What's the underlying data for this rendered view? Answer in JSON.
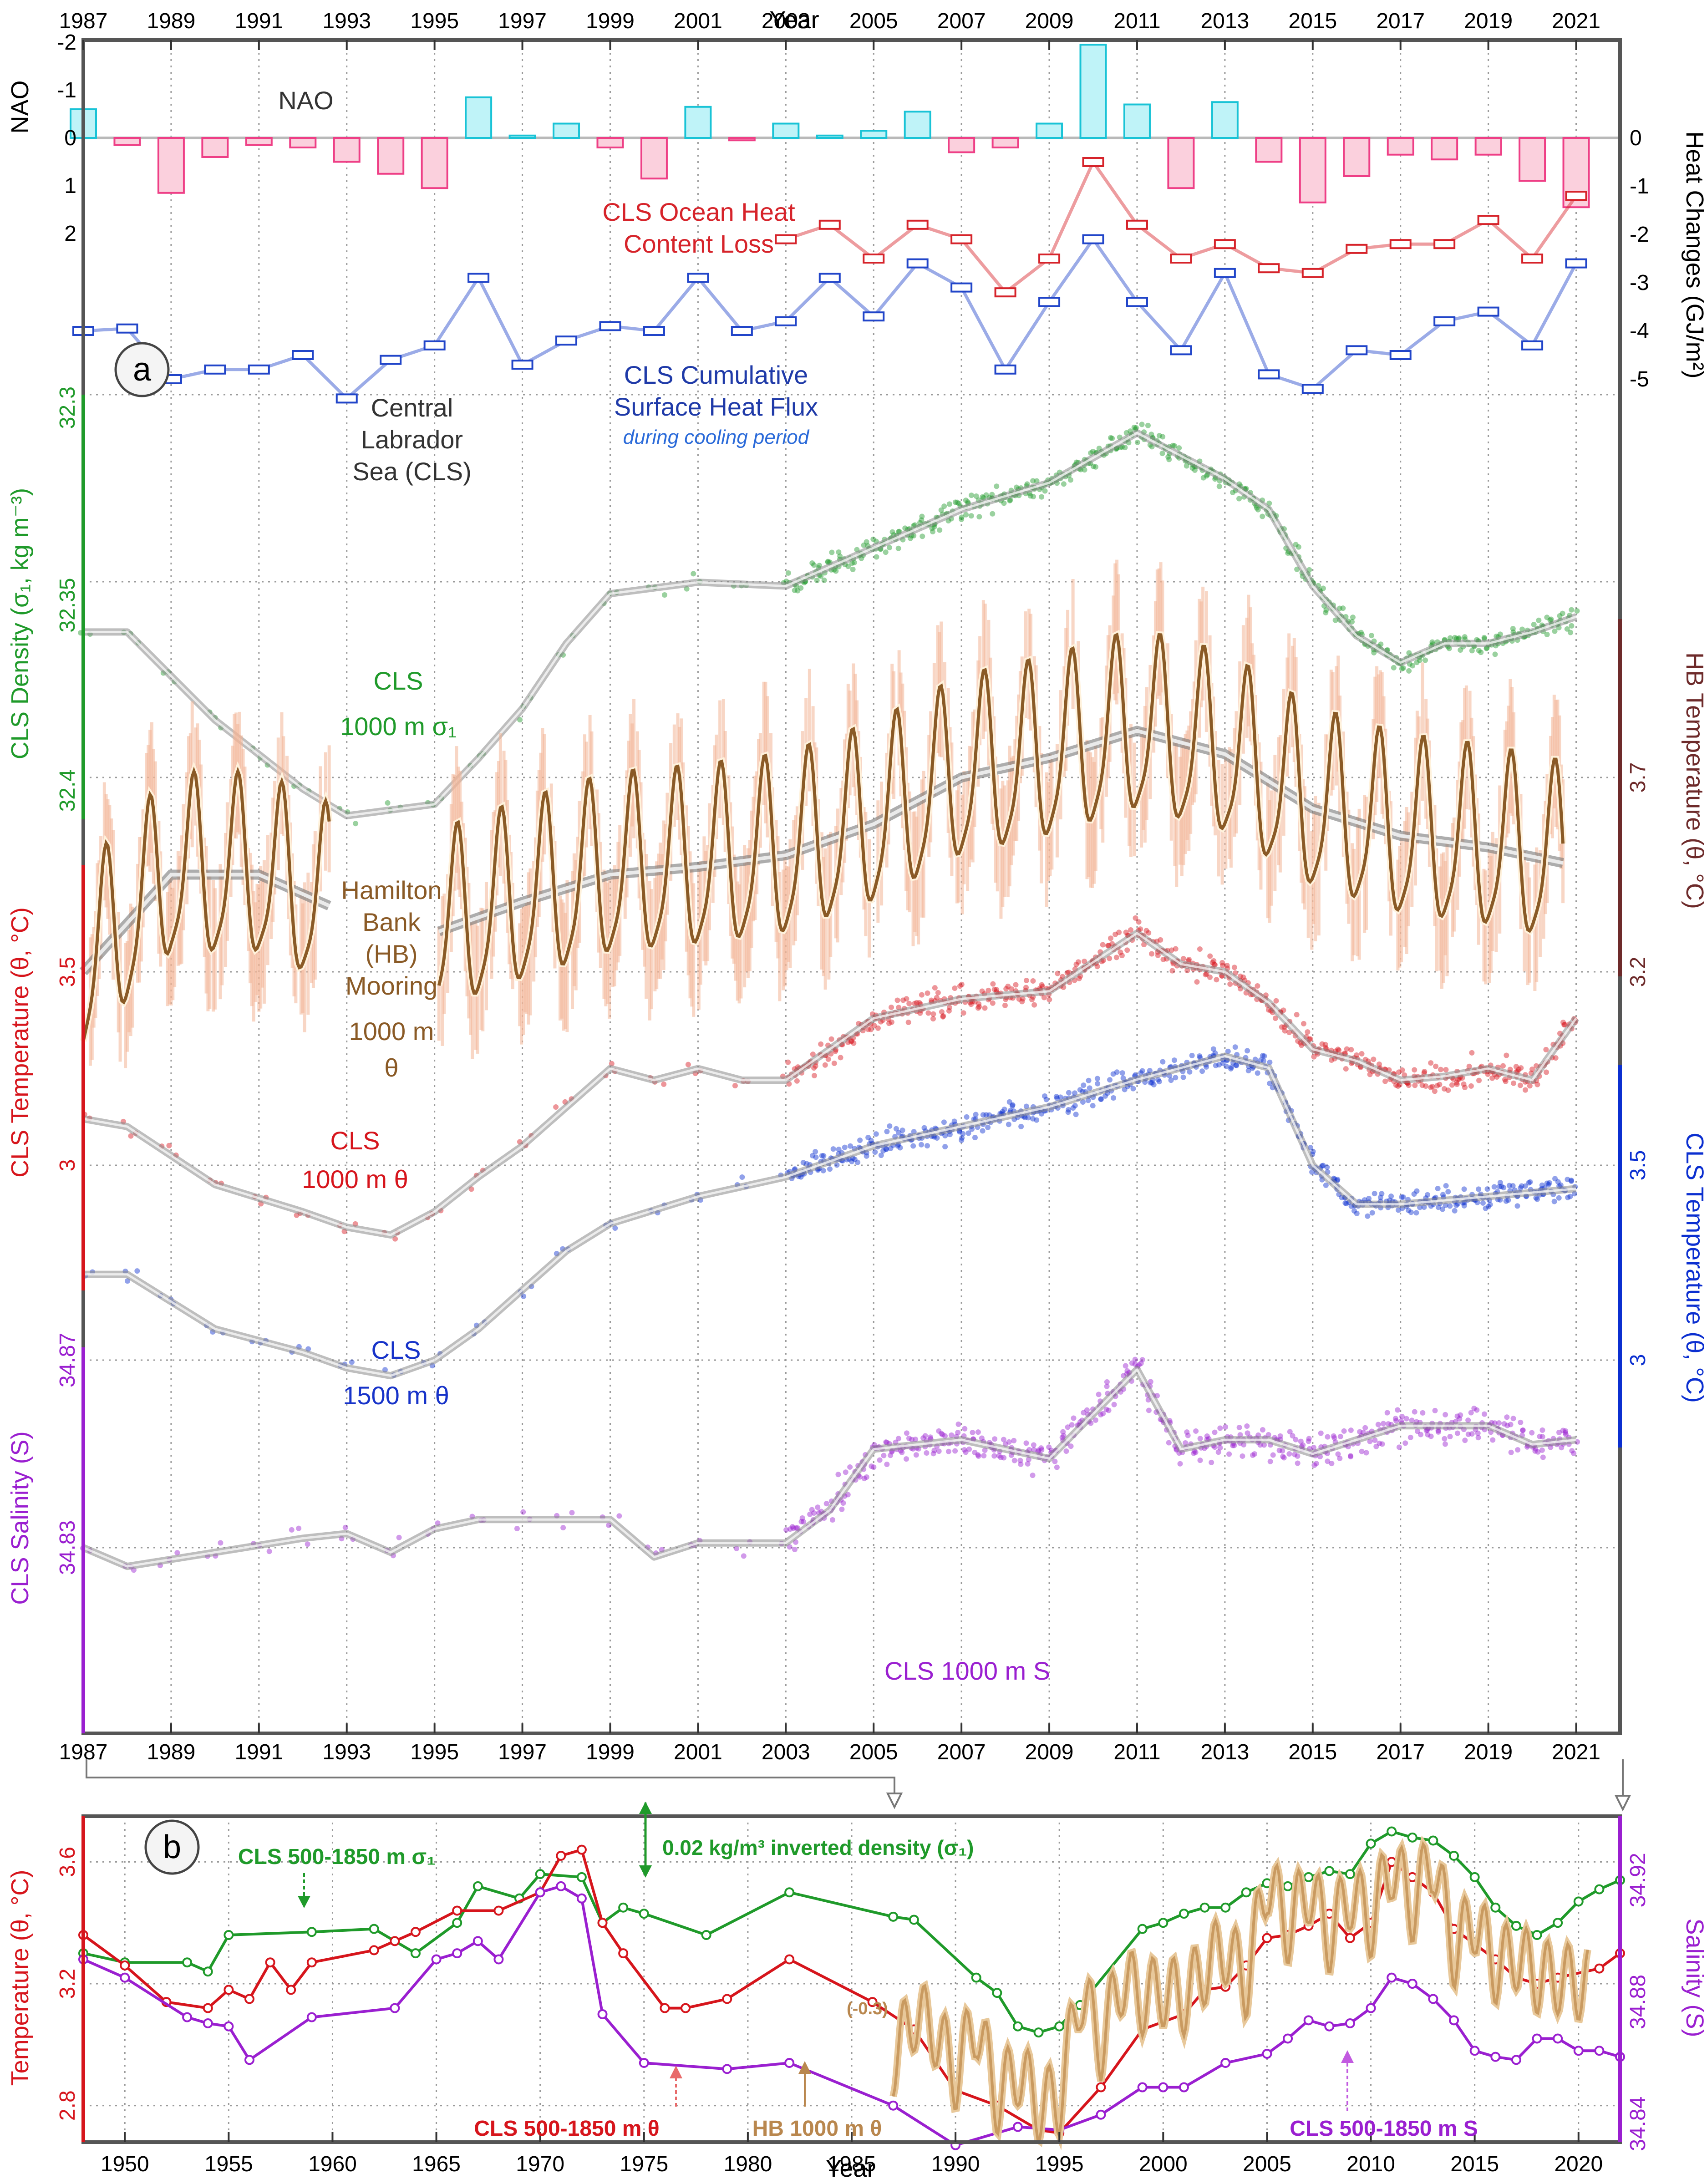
{
  "colors": {
    "nao_pos": "#19c3d6",
    "nao_neg": "#ee3f86",
    "heat_loss": "#d6232a",
    "cum_flux": "#2145c9",
    "density": "#1f9a2a",
    "hb": "#8a5a26",
    "hb_raw": "#f2b595",
    "cls_t1000": "#d6151c",
    "cls_t1500": "#0b2fd0",
    "salinity": "#9a1fd0",
    "smooth": "#9c9c9c",
    "frame": "#555555"
  },
  "chart_data": [
    {
      "type": "line",
      "panel_label": "a",
      "panel_title": "Central Labrador Sea (CLS)",
      "x_axis": {
        "label": "Year",
        "xlim": [
          1987,
          2022
        ],
        "ticks": [
          "1987",
          "1989",
          "1991",
          "1993",
          "1995",
          "1997",
          "1999",
          "2001",
          "2003",
          "2005",
          "2007",
          "2009",
          "2011",
          "2013",
          "2015",
          "2017",
          "2019",
          "2021"
        ]
      },
      "nao": {
        "label": "NAO",
        "axis_label": "NAO",
        "inverted": true,
        "ticks": [
          "-2",
          "-1",
          "0",
          "1",
          "2"
        ],
        "years": [
          1987,
          1988,
          1989,
          1990,
          1991,
          1992,
          1993,
          1994,
          1995,
          1996,
          1997,
          1998,
          1999,
          2000,
          2001,
          2002,
          2003,
          2004,
          2005,
          2006,
          2007,
          2008,
          2009,
          2010,
          2011,
          2012,
          2013,
          2014,
          2015,
          2016,
          2017,
          2018,
          2019,
          2020,
          2021
        ],
        "values": [
          0.6,
          -0.15,
          -1.15,
          -0.4,
          -0.15,
          -0.2,
          -0.5,
          -0.75,
          -1.05,
          0.85,
          0.05,
          0.3,
          -0.2,
          -0.85,
          0.65,
          -0.05,
          0.3,
          0.05,
          0.15,
          0.55,
          -0.3,
          -0.2,
          0.3,
          1.95,
          0.7,
          -1.05,
          0.75,
          -0.5,
          -1.35,
          -0.8,
          -0.35,
          -0.45,
          -0.35,
          -0.9,
          -1.45
        ]
      },
      "heat_changes": {
        "axis_label": "Heat Changes (GJ/m²)",
        "ticks": [
          "0",
          "-1",
          "-2",
          "-3",
          "-4",
          "-5"
        ],
        "series": [
          {
            "name": "CLS Ocean Heat Content Loss",
            "years": [
              2003,
              2004,
              2005,
              2006,
              2007,
              2008,
              2009,
              2010,
              2011,
              2012,
              2013,
              2014,
              2015,
              2016,
              2017,
              2018,
              2019,
              2020,
              2021
            ],
            "values": [
              -2.1,
              -1.8,
              -2.5,
              -1.8,
              -2.1,
              -3.2,
              -2.5,
              -0.5,
              -1.8,
              -2.5,
              -2.2,
              -2.7,
              -2.8,
              -2.3,
              -2.2,
              -2.2,
              -1.7,
              -2.5,
              -1.2
            ]
          },
          {
            "name": "CLS Cumulative Surface Heat Flux",
            "note": "during cooling period",
            "years": [
              1987,
              1988,
              1989,
              1990,
              1991,
              1992,
              1993,
              1994,
              1995,
              1996,
              1997,
              1998,
              1999,
              2000,
              2001,
              2002,
              2003,
              2004,
              2005,
              2006,
              2007,
              2008,
              2009,
              2010,
              2011,
              2012,
              2013,
              2014,
              2015,
              2016,
              2017,
              2018,
              2019,
              2020,
              2021
            ],
            "values": [
              -4.0,
              -3.95,
              -5.0,
              -4.8,
              -4.8,
              -4.5,
              -5.4,
              -4.6,
              -4.3,
              -2.9,
              -4.7,
              -4.2,
              -3.9,
              -4.0,
              -2.9,
              -4.0,
              -3.8,
              -2.9,
              -3.7,
              -2.6,
              -3.1,
              -4.8,
              -3.4,
              -2.1,
              -3.4,
              -4.4,
              -2.8,
              -4.9,
              -5.2,
              -4.4,
              -4.5,
              -3.8,
              -3.6,
              -4.3,
              -2.6
            ]
          }
        ]
      },
      "density_1000m": {
        "name": "CLS 1000 m σ₁",
        "axis_label": "CLS Density (σ₁, kg m⁻³)",
        "ticks": [
          "32.3",
          "32.35",
          "32.4"
        ],
        "years": [
          1987,
          1988,
          1990,
          1992,
          1993,
          1995,
          1996,
          1997,
          1998,
          1999,
          2001,
          2003,
          2005,
          2007,
          2009,
          2011,
          2012,
          2013,
          2014,
          2015,
          2016,
          2017,
          2018,
          2019,
          2020,
          2021
        ],
        "values": [
          32.362,
          32.362,
          32.385,
          32.403,
          32.41,
          32.407,
          32.395,
          32.382,
          32.365,
          32.352,
          32.349,
          32.35,
          32.34,
          32.33,
          32.323,
          32.31,
          32.316,
          32.322,
          32.33,
          32.35,
          32.363,
          32.37,
          32.365,
          32.365,
          32.362,
          32.358
        ]
      },
      "hb_1000m": {
        "name": "Hamilton Bank (HB) Mooring 1000 m θ",
        "axis_label": "HB Temperature (θ, °C)",
        "ticks": [
          "3.7",
          "3.2"
        ],
        "segments": [
          {
            "start": 1987,
            "end": 1992.6
          },
          {
            "start": 1995.1,
            "end": 2020.7
          }
        ],
        "smooth_years": [
          1987,
          1989,
          1991,
          1993,
          1995,
          1997,
          1999,
          2001,
          2003,
          2005,
          2007,
          2009,
          2011,
          2013,
          2015,
          2017,
          2019,
          2020.7
        ],
        "smooth_values": [
          3.2,
          3.45,
          3.45,
          3.35,
          3.3,
          3.38,
          3.45,
          3.47,
          3.5,
          3.58,
          3.7,
          3.75,
          3.82,
          3.76,
          3.62,
          3.55,
          3.52,
          3.48
        ]
      },
      "cls_t_1000m": {
        "name": "CLS 1000 m θ",
        "axis_label": "CLS Temperature (θ, °C)",
        "ticks": [
          "3.5",
          "3"
        ],
        "years": [
          1987,
          1988,
          1990,
          1992,
          1993,
          1994,
          1995,
          1996,
          1997,
          1998,
          1999,
          2000,
          2001,
          2002,
          2003,
          2004,
          2005,
          2007,
          2009,
          2011,
          2012,
          2013,
          2014,
          2015,
          2016,
          2017,
          2018,
          2019,
          2020,
          2021
        ],
        "values": [
          3.12,
          3.1,
          2.95,
          2.88,
          2.84,
          2.82,
          2.88,
          2.97,
          3.05,
          3.15,
          3.25,
          3.22,
          3.25,
          3.22,
          3.22,
          3.3,
          3.38,
          3.43,
          3.45,
          3.6,
          3.52,
          3.5,
          3.42,
          3.3,
          3.27,
          3.22,
          3.23,
          3.25,
          3.22,
          3.38
        ]
      },
      "cls_t_1500m": {
        "name": "CLS 1500 m θ",
        "axis_label": "CLS Temperature (θ, °C)",
        "ticks": [
          "3.5",
          "3"
        ],
        "years": [
          1987,
          1988,
          1990,
          1992,
          1993,
          1994,
          1995,
          1996,
          1997,
          1998,
          1999,
          2001,
          2003,
          2005,
          2007,
          2009,
          2011,
          2013,
          2014,
          2015,
          2016,
          2017,
          2019,
          2021
        ],
        "values": [
          3.22,
          3.22,
          3.08,
          3.02,
          2.98,
          2.96,
          3.0,
          3.08,
          3.18,
          3.28,
          3.35,
          3.42,
          3.47,
          3.55,
          3.6,
          3.65,
          3.72,
          3.78,
          3.75,
          3.5,
          3.4,
          3.4,
          3.42,
          3.44
        ]
      },
      "salinity_1000m": {
        "name": "CLS 1000 m S",
        "axis_label": "CLS Salinity (S)",
        "ticks": [
          "34.87",
          "34.83"
        ],
        "years": [
          1987,
          1988,
          1990,
          1992,
          1993,
          1994,
          1995,
          1996,
          1997,
          1998,
          1999,
          2000,
          2001,
          2002,
          2003,
          2004,
          2005,
          2007,
          2009,
          2011,
          2012,
          2013,
          2014,
          2015,
          2016,
          2017,
          2018,
          2019,
          2020,
          2021
        ],
        "values": [
          34.83,
          34.826,
          34.829,
          34.832,
          34.833,
          34.829,
          34.834,
          34.836,
          34.836,
          34.836,
          34.836,
          34.828,
          34.831,
          34.831,
          34.831,
          34.838,
          34.851,
          34.853,
          34.849,
          34.868,
          34.851,
          34.853,
          34.853,
          34.85,
          34.853,
          34.856,
          34.856,
          34.856,
          34.852,
          34.853
        ]
      }
    },
    {
      "type": "line",
      "panel_label": "b",
      "x_axis": {
        "label": "Year",
        "xlim": [
          1948,
          2022
        ],
        "ticks": [
          "1950",
          "1955",
          "1960",
          "1965",
          "1970",
          "1975",
          "1980",
          "1985",
          "1990",
          "1995",
          "2000",
          "2005",
          "2010",
          "2015",
          "2020"
        ]
      },
      "left_axis": {
        "label": "Temperature (θ, °C)",
        "ticks": [
          "3.6",
          "3.2",
          "2.8"
        ],
        "ylim": [
          2.68,
          3.75
        ]
      },
      "right_axis": {
        "label": "Salinity (S)",
        "ticks": [
          "34.92",
          "34.88",
          "34.84"
        ]
      },
      "annotations": [
        "0.02 kg/m³ inverted density (σ₁)",
        "(-0.3)"
      ],
      "series": [
        {
          "name": "CLS 500-1850 m σ₁",
          "years": [
            1948,
            1950,
            1953,
            1954,
            1955,
            1959,
            1962,
            1964,
            1966,
            1967,
            1969,
            1970,
            1972,
            1973,
            1974,
            1975,
            1978,
            1982,
            1987,
            1988,
            1991,
            1992,
            1993,
            1994,
            1995,
            1996,
            1999,
            2000,
            2001,
            2002,
            2003,
            2004,
            2005,
            2006,
            2007,
            2008,
            2009,
            2010,
            2011,
            2012,
            2013,
            2014,
            2015,
            2016,
            2017,
            2018,
            2019,
            2020,
            2021,
            2022
          ],
          "values": [
            3.3,
            3.27,
            3.27,
            3.24,
            3.36,
            3.37,
            3.38,
            3.3,
            3.4,
            3.52,
            3.48,
            3.56,
            3.55,
            3.4,
            3.45,
            3.43,
            3.36,
            3.5,
            3.42,
            3.41,
            3.22,
            3.17,
            3.06,
            3.04,
            3.06,
            3.13,
            3.38,
            3.4,
            3.43,
            3.45,
            3.45,
            3.5,
            3.53,
            3.52,
            3.55,
            3.57,
            3.56,
            3.66,
            3.7,
            3.68,
            3.67,
            3.62,
            3.55,
            3.45,
            3.39,
            3.36,
            3.4,
            3.47,
            3.51,
            3.54
          ]
        },
        {
          "name": "CLS 500-1850 m θ",
          "years": [
            1948,
            1950,
            1952,
            1954,
            1955,
            1956,
            1957,
            1958,
            1959,
            1962,
            1963,
            1964,
            1966,
            1968,
            1970,
            1971,
            1972,
            1973,
            1974,
            1976,
            1977,
            1979,
            1982,
            1986,
            1988,
            1990,
            1992,
            1994,
            1995,
            1997,
            1999,
            2001,
            2002,
            2003,
            2004,
            2005,
            2006,
            2007,
            2008,
            2009,
            2010,
            2011,
            2012,
            2013,
            2014,
            2016,
            2017,
            2018,
            2019,
            2021,
            2022
          ],
          "values": [
            3.36,
            3.26,
            3.14,
            3.12,
            3.18,
            3.15,
            3.27,
            3.18,
            3.27,
            3.31,
            3.34,
            3.37,
            3.44,
            3.44,
            3.5,
            3.62,
            3.64,
            3.4,
            3.3,
            3.12,
            3.12,
            3.15,
            3.28,
            3.14,
            3.05,
            2.85,
            2.8,
            2.72,
            2.71,
            2.86,
            3.05,
            3.1,
            3.18,
            3.19,
            3.26,
            3.35,
            3.36,
            3.39,
            3.43,
            3.35,
            3.4,
            3.6,
            3.55,
            3.5,
            3.38,
            3.28,
            3.22,
            3.2,
            3.22,
            3.25,
            3.3
          ]
        },
        {
          "name": "CLS 500-1850 m S",
          "years": [
            1948,
            1950,
            1953,
            1954,
            1955,
            1956,
            1959,
            1963,
            1965,
            1966,
            1967,
            1968,
            1970,
            1971,
            1972,
            1973,
            1975,
            1979,
            1982,
            1987,
            1990,
            1993,
            1995,
            1997,
            1999,
            2000,
            2001,
            2003,
            2005,
            2006,
            2007,
            2008,
            2009,
            2010,
            2011,
            2012,
            2013,
            2014,
            2015,
            2016,
            2017,
            2018,
            2019,
            2020,
            2021,
            2022
          ],
          "values": [
            3.28,
            3.22,
            3.09,
            3.07,
            3.06,
            2.95,
            3.09,
            3.12,
            3.28,
            3.3,
            3.34,
            3.28,
            3.5,
            3.52,
            3.48,
            3.1,
            2.94,
            2.92,
            2.94,
            2.8,
            2.67,
            2.73,
            2.72,
            2.77,
            2.86,
            2.86,
            2.86,
            2.94,
            2.97,
            3.02,
            3.08,
            3.06,
            3.07,
            3.12,
            3.22,
            3.2,
            3.15,
            3.08,
            2.98,
            2.96,
            2.95,
            3.02,
            3.02,
            2.98,
            2.98,
            2.96
          ]
        },
        {
          "name": "HB 1000 m θ",
          "offset": "(-0.3)",
          "years": [
            1987,
            1988,
            1989,
            1990,
            1991,
            1992,
            1993,
            1994,
            1995,
            1996,
            1997,
            1998,
            1999,
            2000,
            2001,
            2002,
            2003,
            2004,
            2005,
            2006,
            2007,
            2008,
            2009,
            2010,
            2011,
            2012,
            2013,
            2014,
            2015,
            2016,
            2017,
            2018,
            2019,
            2020
          ],
          "values": [
            2.95,
            3.1,
            3.05,
            2.9,
            3.08,
            2.82,
            2.92,
            2.8,
            2.82,
            3.18,
            3.0,
            3.22,
            3.15,
            3.18,
            3.15,
            3.25,
            3.32,
            3.2,
            3.55,
            3.38,
            3.52,
            3.35,
            3.5,
            3.4,
            3.6,
            3.45,
            3.62,
            3.3,
            3.42,
            3.25,
            3.3,
            3.22,
            3.22,
            3.2
          ]
        }
      ]
    }
  ]
}
